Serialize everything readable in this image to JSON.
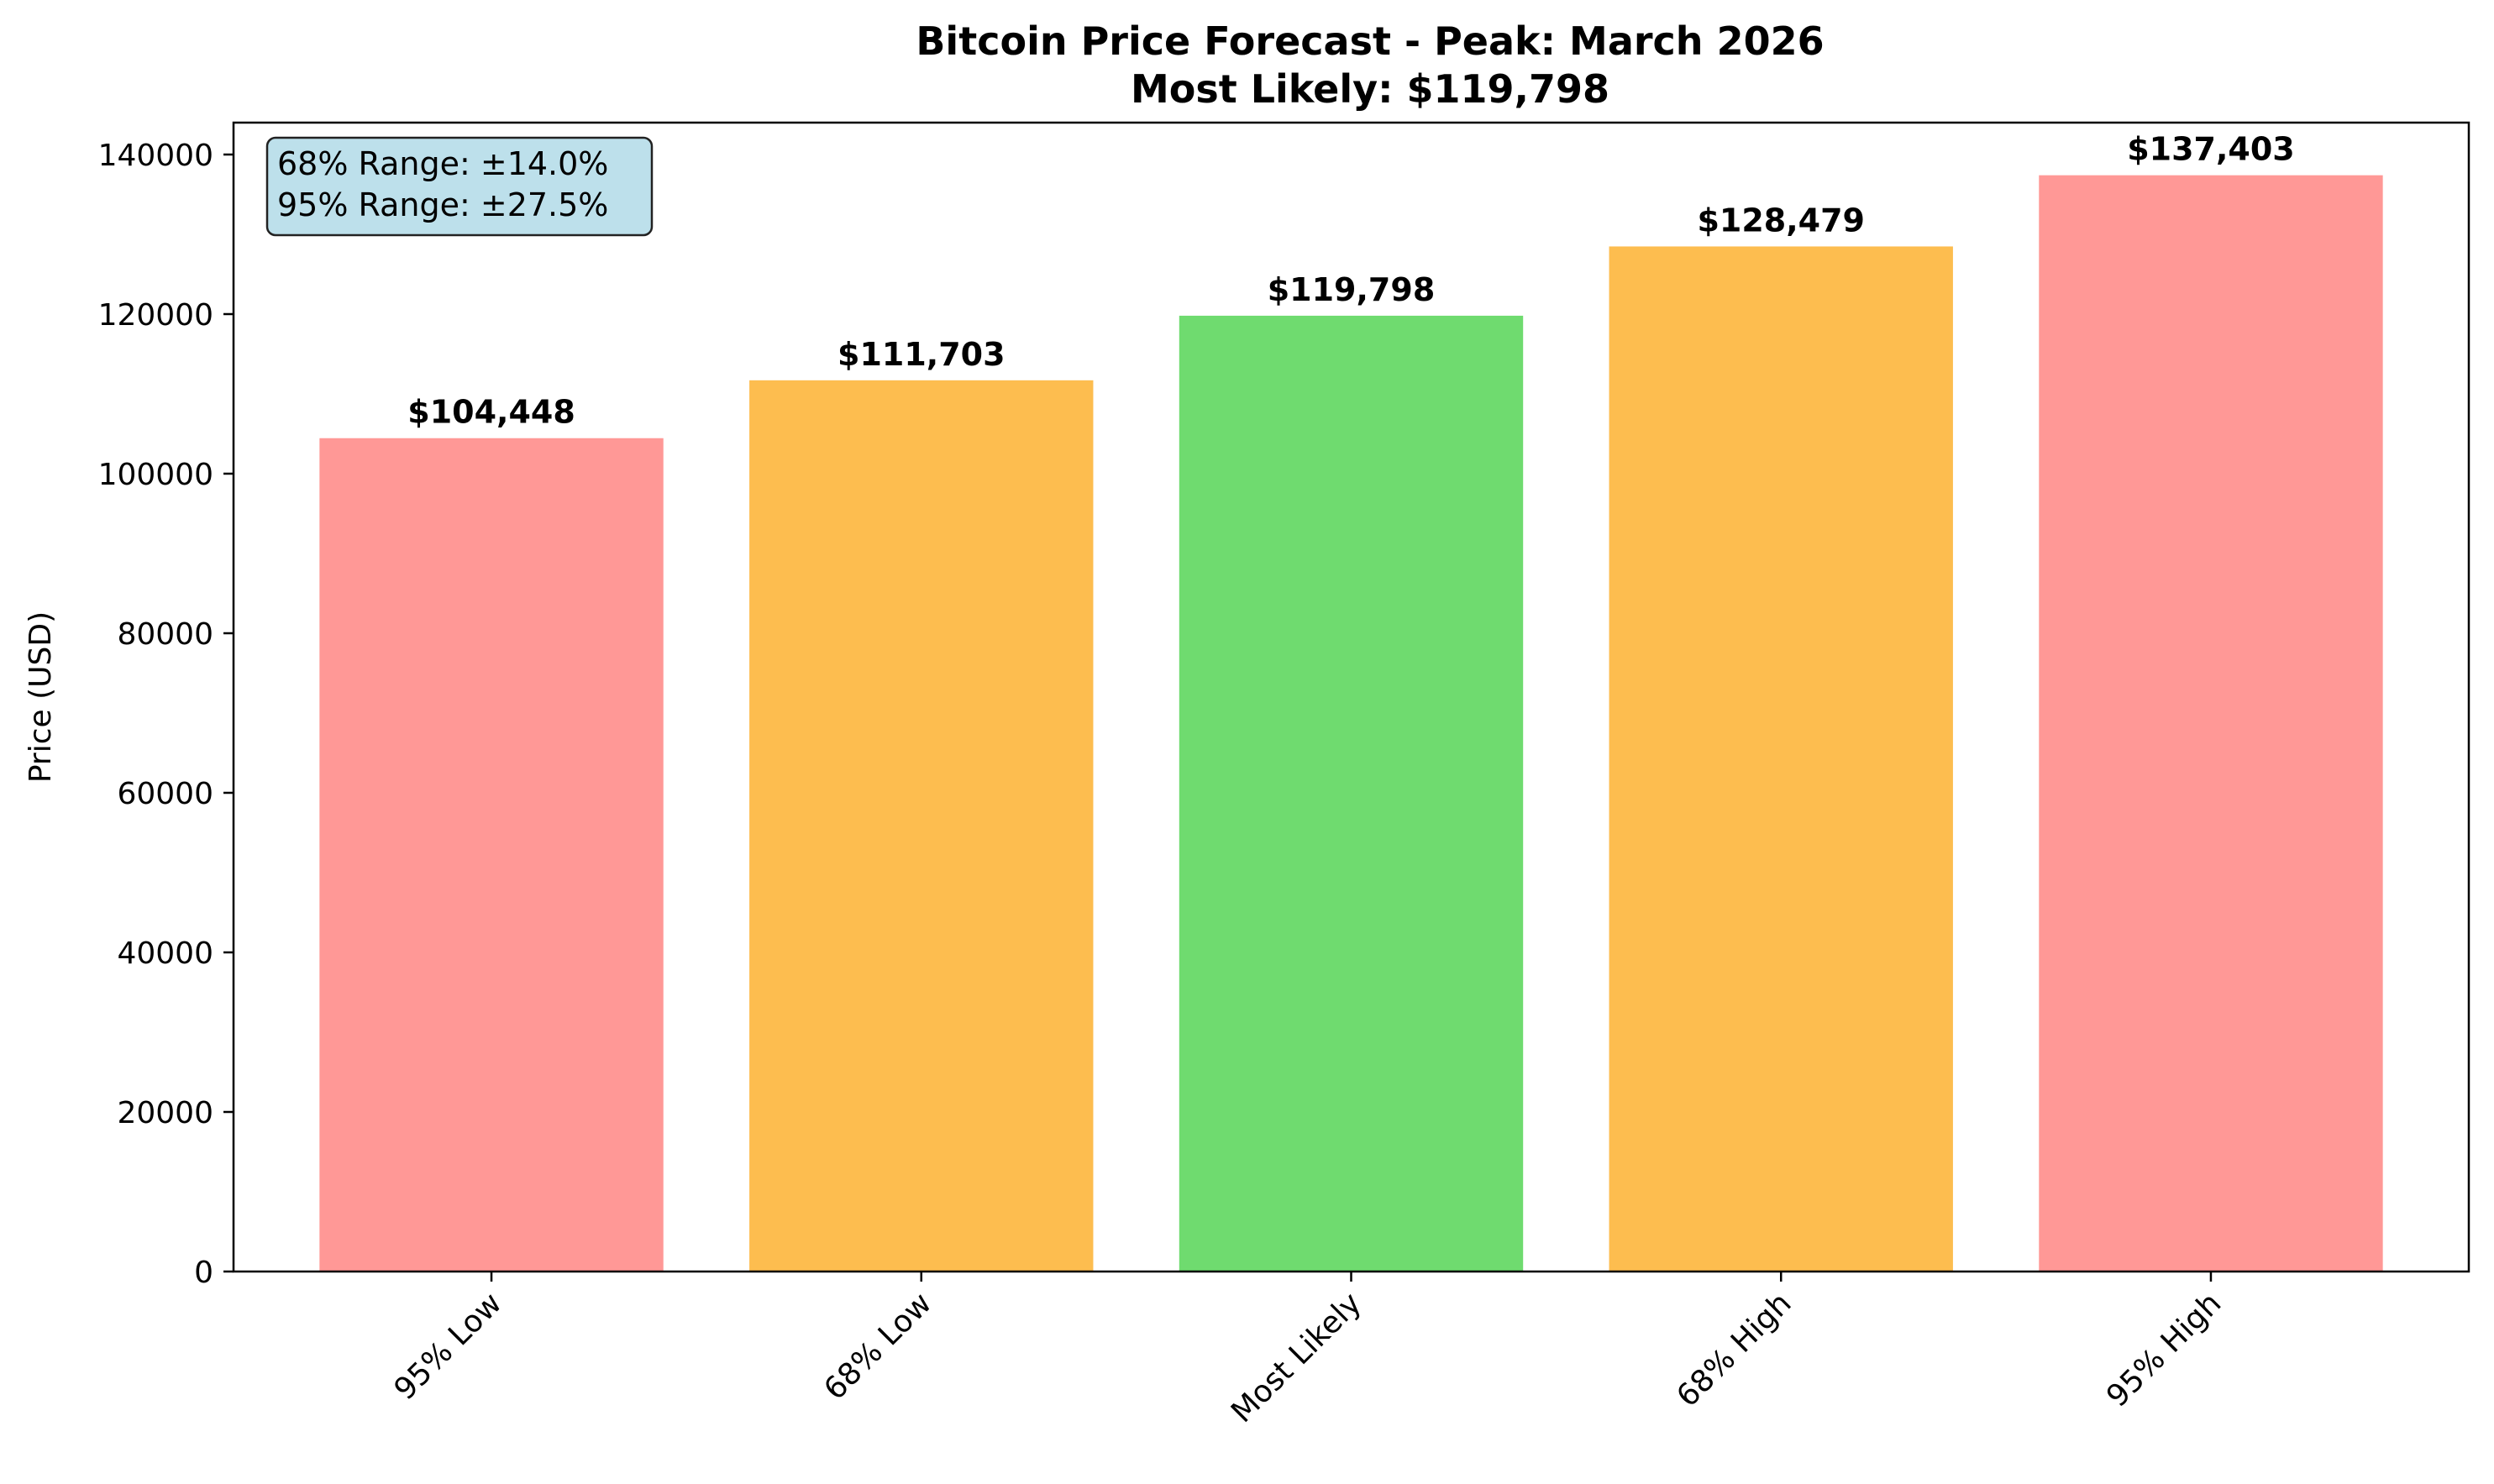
{
  "chart_data": {
    "type": "bar",
    "title": "Bitcoin Price Forecast - Peak: March 2026",
    "subtitle": "Most Likely: $119,798",
    "xlabel": "",
    "ylabel": "Price (USD)",
    "categories": [
      "95% Low",
      "68% Low",
      "Most Likely",
      "68% High",
      "95% High"
    ],
    "values": [
      104448,
      111703,
      119798,
      128479,
      137403
    ],
    "data_labels": [
      "$104,448",
      "$111,703",
      "$119,798",
      "$128,479",
      "$137,403"
    ],
    "colors": [
      "#ff9896",
      "#fdbd4f",
      "#6fdb6f",
      "#fdbd4f",
      "#ff9896"
    ],
    "ylim": [
      0,
      144000
    ],
    "yticks": [
      0,
      20000,
      40000,
      60000,
      80000,
      100000,
      120000,
      140000
    ],
    "ytick_labels": [
      "0",
      "20000",
      "40000",
      "60000",
      "80000",
      "100000",
      "120000",
      "140000"
    ],
    "grid": false,
    "annotation": {
      "lines": [
        "68% Range: ±14.0%",
        "95% Range: ±27.5%"
      ],
      "background": "#add8e6",
      "placement": "top-left"
    }
  }
}
